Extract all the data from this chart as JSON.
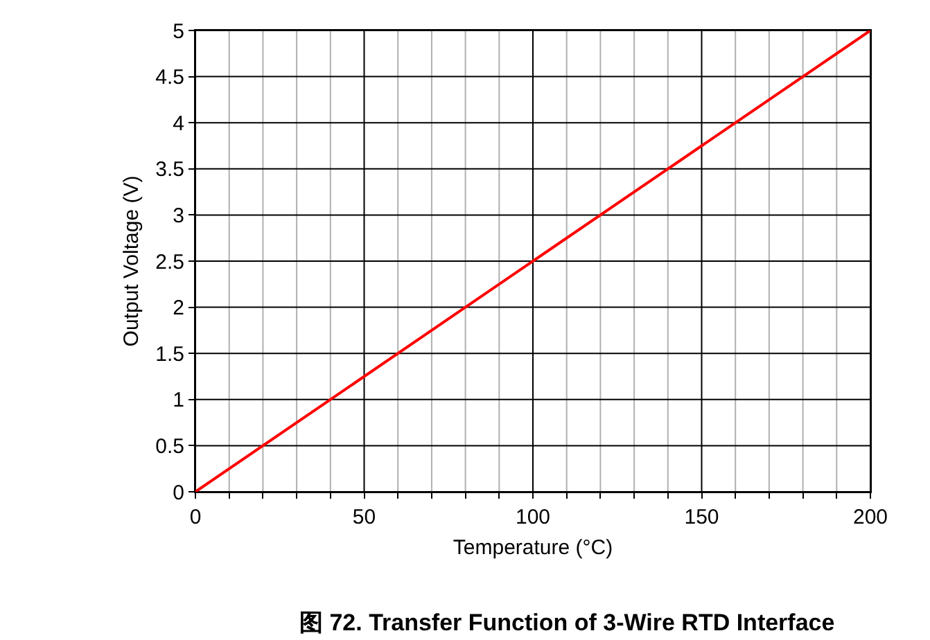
{
  "chart_data": {
    "type": "line",
    "title": "图 72. Transfer Function of 3-Wire RTD Interface",
    "xlabel": "Temperature (°C)",
    "ylabel": "Output Voltage (V)",
    "x": [
      0,
      200
    ],
    "series": [
      {
        "color": "#ff0000",
        "values": [
          0,
          5
        ]
      }
    ],
    "xlim": [
      0,
      200
    ],
    "ylim": [
      0,
      5
    ],
    "xticks": [
      0,
      {
        "value": 10,
        "label": null
      },
      {
        "value": 20,
        "label": null
      },
      {
        "value": 30,
        "label": null
      },
      {
        "value": 40,
        "label": null
      },
      50,
      {
        "value": 60,
        "label": null
      },
      {
        "value": 70,
        "label": null
      },
      {
        "value": 80,
        "label": null
      },
      {
        "value": 90,
        "label": null
      },
      100,
      {
        "value": 110,
        "label": null
      },
      {
        "value": 120,
        "label": null
      },
      {
        "value": 130,
        "label": null
      },
      {
        "value": 140,
        "label": null
      },
      150,
      {
        "value": 160,
        "label": null
      },
      {
        "value": 170,
        "label": null
      },
      {
        "value": 180,
        "label": null
      },
      {
        "value": 190,
        "label": null
      },
      200
    ],
    "yticks": [
      0,
      0.5,
      1,
      1.5,
      2,
      2.5,
      3,
      3.5,
      4,
      4.5,
      5
    ],
    "grid": true,
    "marker": "none",
    "line_style": "solid"
  }
}
